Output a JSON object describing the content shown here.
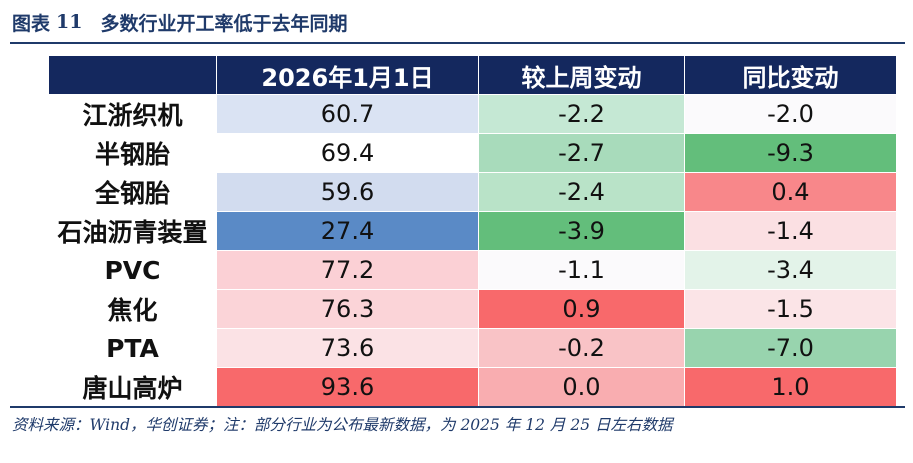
{
  "figure": {
    "label": "图表",
    "number": "11",
    "title": "多数行业开工率低于去年同期"
  },
  "table": {
    "columns": [
      "",
      "2026年1月1日",
      "较上周变动",
      "同比变动"
    ],
    "rows": [
      {
        "name": "江浙织机",
        "cells": [
          {
            "v": "60.7",
            "bg": "#dae3f3"
          },
          {
            "v": "-2.2",
            "bg": "#c5e8d4"
          },
          {
            "v": "-2.0",
            "bg": "#fbfafc"
          }
        ]
      },
      {
        "name": "半钢胎",
        "cells": [
          {
            "v": "69.4",
            "bg": "#ffffff"
          },
          {
            "v": "-2.7",
            "bg": "#a8dbbb"
          },
          {
            "v": "-9.3",
            "bg": "#63be7b"
          }
        ]
      },
      {
        "name": "全钢胎",
        "cells": [
          {
            "v": "59.6",
            "bg": "#d2dcef"
          },
          {
            "v": "-2.4",
            "bg": "#b9e3c8"
          },
          {
            "v": "0.4",
            "bg": "#f8878a"
          }
        ]
      },
      {
        "name": "石油沥青装置",
        "cells": [
          {
            "v": "27.4",
            "bg": "#5a8ac6"
          },
          {
            "v": "-3.9",
            "bg": "#63be7b"
          },
          {
            "v": "-1.4",
            "bg": "#fbe0e3"
          }
        ]
      },
      {
        "name": "PVC",
        "cells": [
          {
            "v": "77.2",
            "bg": "#fbd0d5"
          },
          {
            "v": "-1.1",
            "bg": "#fbfafc"
          },
          {
            "v": "-3.4",
            "bg": "#e3f3e9"
          }
        ]
      },
      {
        "name": "焦化",
        "cells": [
          {
            "v": "76.3",
            "bg": "#fbd4d8"
          },
          {
            "v": "0.9",
            "bg": "#f8696b"
          },
          {
            "v": "-1.5",
            "bg": "#fbe4e7"
          }
        ]
      },
      {
        "name": "PTA",
        "cells": [
          {
            "v": "73.6",
            "bg": "#fbe2e5"
          },
          {
            "v": "-0.2",
            "bg": "#f9c3c6"
          },
          {
            "v": "-7.0",
            "bg": "#98d4ae"
          }
        ]
      },
      {
        "name": "唐山高炉",
        "cells": [
          {
            "v": "93.6",
            "bg": "#f8696b"
          },
          {
            "v": "0.0",
            "bg": "#f9adb0"
          },
          {
            "v": "1.0",
            "bg": "#f8696b"
          }
        ]
      }
    ]
  },
  "source": "资料来源：Wind，华创证券；注：部分行业为公布最新数据，为 2025 年 12 月 25 日左右数据"
}
